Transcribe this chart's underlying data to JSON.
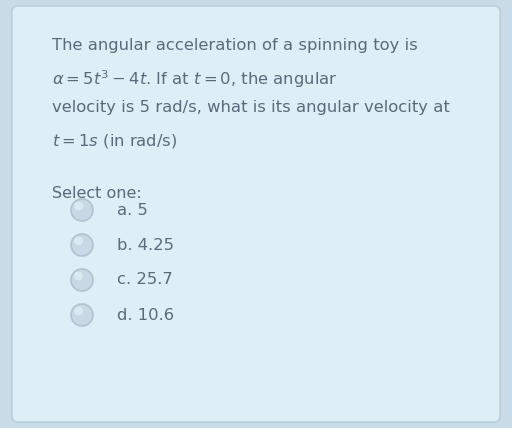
{
  "bg_color": "#c8dce8",
  "card_color": "#ddeef6",
  "text_color": "#5a6a7a",
  "line1": "The angular acceleration of a spinning toy is",
  "line3": "velocity is 5 rad/s, what is its angular velocity at",
  "select_label": "Select one:",
  "options": [
    "a. 5",
    "b. 4.25",
    "c. 25.7",
    "d. 10.6"
  ],
  "radio_fill": "#c8d8e4",
  "radio_edge": "#b0c4d0",
  "radio_highlight": "#ddeef6",
  "font_size_body": 11.8,
  "font_size_options": 11.8,
  "font_size_select": 11.5,
  "fig_width": 5.12,
  "fig_height": 4.28,
  "dpi": 100
}
